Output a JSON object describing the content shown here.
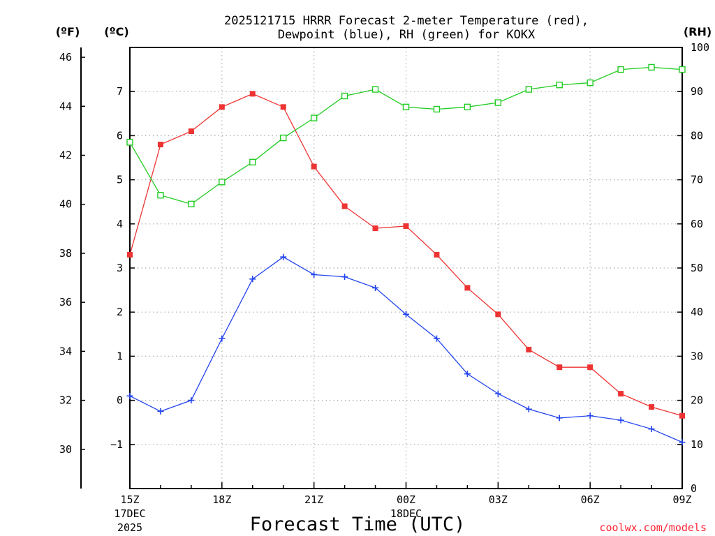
{
  "title_line1": "2025121715 HRRR Forecast 2-meter Temperature (red),",
  "title_line2": "Dewpoint (blue), RH (green) for KOKX",
  "units": {
    "fahrenheit": "(ºF)",
    "celsius": "(ºC)",
    "rh": "(RH)"
  },
  "xlabel": "Forecast Time (UTC)",
  "credit": "coolwx.com/models",
  "x_ticks": [
    {
      "label": "15Z",
      "sub1": "17DEC",
      "sub2": "2025"
    },
    {
      "label": "18Z"
    },
    {
      "label": "21Z"
    },
    {
      "label": "00Z",
      "sub1": "18DEC"
    },
    {
      "label": "03Z"
    },
    {
      "label": "06Z"
    },
    {
      "label": "09Z"
    }
  ],
  "fahrenheit_ticks": [
    "30",
    "32",
    "34",
    "36",
    "38",
    "40",
    "42",
    "44",
    "46"
  ],
  "celsius_ticks": [
    "−1",
    "0",
    "1",
    "2",
    "3",
    "4",
    "5",
    "6",
    "7"
  ],
  "rh_ticks": [
    "0",
    "10",
    "20",
    "30",
    "40",
    "50",
    "60",
    "70",
    "80",
    "90",
    "100"
  ],
  "chart_data": {
    "type": "line",
    "x_hours": [
      "15Z",
      "16Z",
      "17Z",
      "18Z",
      "19Z",
      "20Z",
      "21Z",
      "22Z",
      "23Z",
      "00Z",
      "01Z",
      "02Z",
      "03Z",
      "04Z",
      "05Z",
      "06Z",
      "07Z",
      "08Z",
      "09Z"
    ],
    "celsius_range": [
      -2.0,
      8.0
    ],
    "fahrenheit_range": [
      28.4,
      46.4
    ],
    "rh_range": [
      0,
      100
    ],
    "grid": true,
    "series": [
      {
        "name": "Temperature (red)",
        "axis": "celsius",
        "color": "#ee3333",
        "marker": "filled-square",
        "values": [
          3.3,
          5.8,
          6.1,
          6.65,
          6.95,
          6.65,
          5.3,
          4.4,
          3.9,
          3.95,
          3.3,
          2.55,
          1.95,
          1.15,
          0.75,
          0.75,
          0.15,
          -0.15,
          -0.35
        ]
      },
      {
        "name": "Dewpoint (blue)",
        "axis": "celsius",
        "color": "#2244ee",
        "marker": "plus",
        "values": [
          0.1,
          -0.25,
          0.0,
          1.4,
          2.75,
          3.25,
          2.85,
          2.8,
          2.55,
          1.95,
          1.4,
          0.6,
          0.15,
          -0.2,
          -0.4,
          -0.35,
          -0.45,
          -0.65,
          -0.95
        ]
      },
      {
        "name": "RH (green)",
        "axis": "rh",
        "color": "#22cc22",
        "marker": "open-square",
        "values": [
          78.5,
          66.5,
          64.5,
          69.5,
          74.0,
          79.5,
          84.0,
          89.0,
          90.5,
          86.5,
          86.0,
          86.5,
          87.5,
          90.5,
          91.5,
          92.0,
          95.0,
          95.5,
          95.0
        ]
      }
    ]
  }
}
